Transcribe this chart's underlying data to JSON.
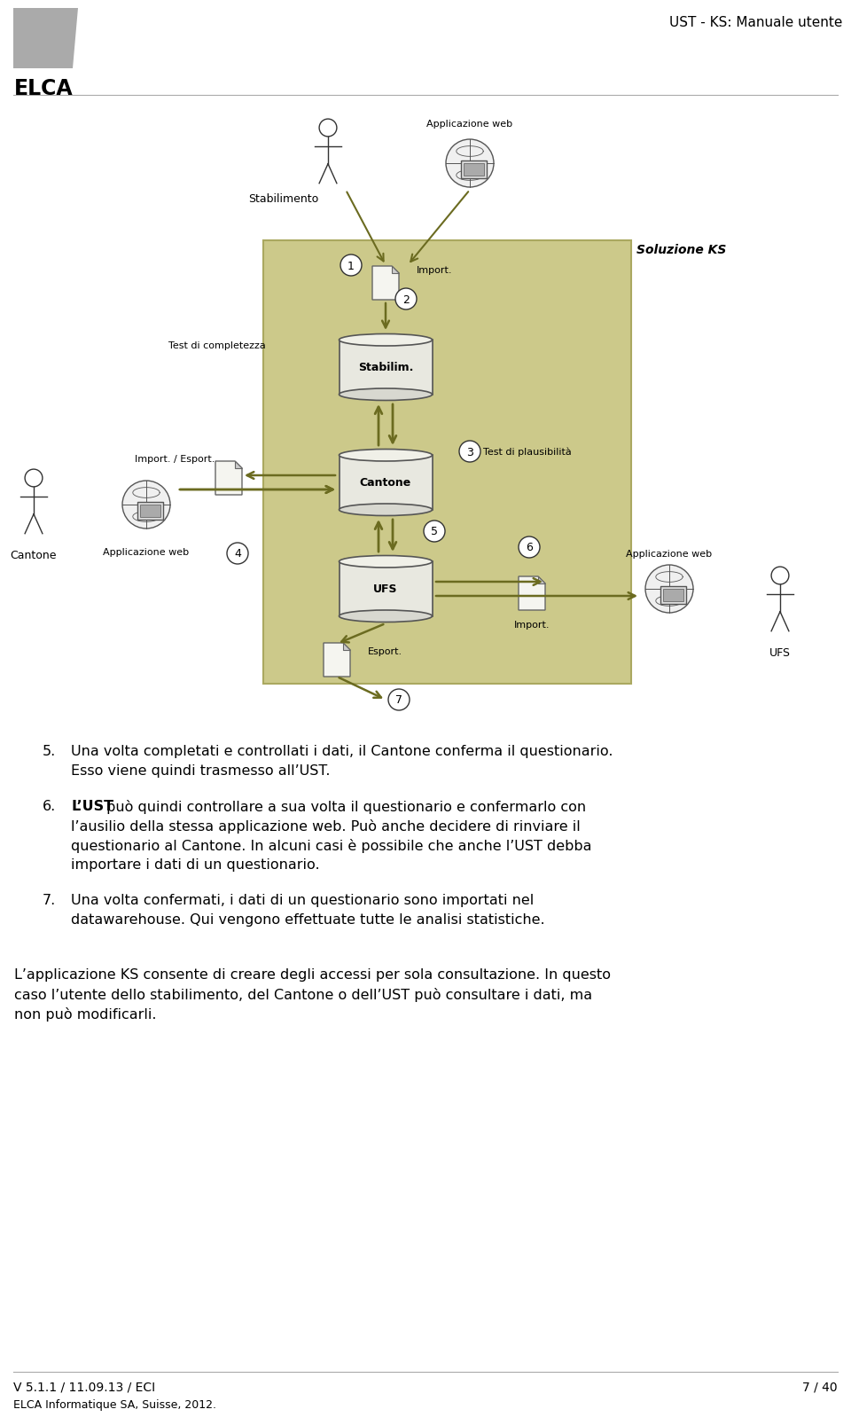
{
  "title_right": "UST - KS: Manuale utente",
  "logo_text": "ELCA",
  "footer_left_line1": "V 5.1.1 / 11.09.13 / ECI",
  "footer_left_line2": "ELCA Informatique SA, Suisse, 2012.",
  "footer_right": "7 / 40",
  "diagram_bg_color": "#ccc98a",
  "arrow_color": "#6b6b20",
  "bg_color": "#ffffff",
  "item5_num": "5.",
  "item5_text1": "Una volta completati e controllati i dati, il Cantone conferma il questionario.",
  "item5_text2": "Esso viene quindi trasmesso all’UST.",
  "item6_num": "6.",
  "item6_bold": "L’UST",
  "item6_text1": " può quindi controllare a sua volta il questionario e confermarlo con",
  "item6_text2": "l’ausilio della stessa applicazione web. Può anche decidere di rinviare il",
  "item6_text3": "questionario al Cantone. In alcuni casi è possibile che anche l’UST debba",
  "item6_text4": "importare i dati di un questionario.",
  "item7_num": "7.",
  "item7_text1": "Una volta confermati, i dati di un questionario sono importati nel",
  "item7_text2": "datawarehouse. Qui vengono effettuate tutte le analisi statistiche.",
  "final_para1": "L’applicazione KS consente di creare degli accessi per sola consultazione. In questo",
  "final_para2": "caso l’utente dello stabilimento, del Cantone o dell’UST può consultare i dati, ma",
  "final_para3": "non può modificarli."
}
